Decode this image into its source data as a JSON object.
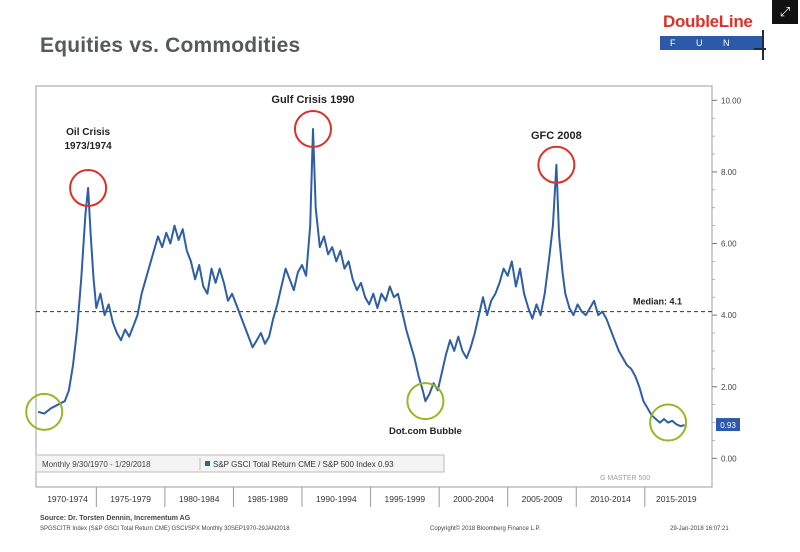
{
  "title": "Equities vs. Commodities",
  "logo": {
    "brand": "DoubleLine",
    "sub": "F U N D S"
  },
  "expand_icon": "expand-icon",
  "legend": {
    "period": "Monthly 9/30/1970 - 1/29/2018",
    "series": "S&P GSCI Total Return CME / S&P 500 Index 0.93"
  },
  "last_value_label": "0.93",
  "median_label": "Median: 4.1",
  "watermark": "G MASTER 500",
  "source_line": "Source: Dr. Torsten Dennin, Incrementum AG",
  "footer_left": "SPGSCITR Index (S&P GSCI Total Return CME) GSCI/SPX  Monthly 30SEP1970-29JAN2018",
  "footer_mid": "Copyright© 2018 Bloomberg Finance L.P.",
  "footer_right": "29-Jan-2018 16:07:21",
  "colors": {
    "line": "#2f5ea3",
    "annotation_red": "#d9322b",
    "annotation_green": "#9ab526"
  },
  "chart_data": {
    "type": "line",
    "title": "Equities vs. Commodities",
    "xlabel": "",
    "ylabel": "",
    "xlim": [
      1970.6,
      2019.9
    ],
    "ylim": [
      -0.8,
      10.4
    ],
    "y_ticks": [
      0,
      2,
      4,
      6,
      8,
      10
    ],
    "y_tick_labels": [
      "0.00",
      "2.00",
      "4.00",
      "6.00",
      "8.00",
      "10.00"
    ],
    "x_tick_labels": [
      "1970-1974",
      "1975-1979",
      "1980-1984",
      "1985-1989",
      "1990-1994",
      "1995-1999",
      "2000-2004",
      "2005-2009",
      "2010-2014",
      "2015-2019"
    ],
    "median": 4.1,
    "grid": false,
    "legend_position": "bottom-left",
    "series": [
      {
        "name": "S&P GSCI Total Return CME / S&P 500 Index",
        "last_value": 0.93,
        "points": [
          [
            1970.75,
            1.3
          ],
          [
            1971.2,
            1.25
          ],
          [
            1971.7,
            1.4
          ],
          [
            1972.2,
            1.5
          ],
          [
            1972.7,
            1.6
          ],
          [
            1973.0,
            1.9
          ],
          [
            1973.3,
            2.6
          ],
          [
            1973.6,
            3.6
          ],
          [
            1973.9,
            5.0
          ],
          [
            1974.2,
            6.8
          ],
          [
            1974.4,
            7.55
          ],
          [
            1974.6,
            6.2
          ],
          [
            1974.8,
            5.0
          ],
          [
            1975.0,
            4.2
          ],
          [
            1975.3,
            4.6
          ],
          [
            1975.6,
            4.0
          ],
          [
            1975.9,
            4.3
          ],
          [
            1976.2,
            3.8
          ],
          [
            1976.5,
            3.5
          ],
          [
            1976.8,
            3.3
          ],
          [
            1977.1,
            3.6
          ],
          [
            1977.4,
            3.4
          ],
          [
            1977.7,
            3.7
          ],
          [
            1978.0,
            4.0
          ],
          [
            1978.3,
            4.6
          ],
          [
            1978.6,
            5.0
          ],
          [
            1978.9,
            5.4
          ],
          [
            1979.2,
            5.8
          ],
          [
            1979.5,
            6.2
          ],
          [
            1979.8,
            5.9
          ],
          [
            1980.1,
            6.3
          ],
          [
            1980.4,
            6.0
          ],
          [
            1980.7,
            6.5
          ],
          [
            1981.0,
            6.1
          ],
          [
            1981.3,
            6.4
          ],
          [
            1981.6,
            5.8
          ],
          [
            1981.9,
            5.5
          ],
          [
            1982.2,
            5.0
          ],
          [
            1982.5,
            5.4
          ],
          [
            1982.8,
            4.8
          ],
          [
            1983.1,
            4.6
          ],
          [
            1983.4,
            5.3
          ],
          [
            1983.7,
            4.9
          ],
          [
            1984.0,
            5.3
          ],
          [
            1984.3,
            4.9
          ],
          [
            1984.6,
            4.4
          ],
          [
            1984.9,
            4.6
          ],
          [
            1985.2,
            4.3
          ],
          [
            1985.5,
            4.0
          ],
          [
            1985.8,
            3.7
          ],
          [
            1986.1,
            3.4
          ],
          [
            1986.4,
            3.1
          ],
          [
            1986.7,
            3.3
          ],
          [
            1987.0,
            3.5
          ],
          [
            1987.3,
            3.2
          ],
          [
            1987.6,
            3.4
          ],
          [
            1987.9,
            3.9
          ],
          [
            1988.2,
            4.3
          ],
          [
            1988.5,
            4.8
          ],
          [
            1988.8,
            5.3
          ],
          [
            1989.1,
            5.0
          ],
          [
            1989.4,
            4.7
          ],
          [
            1989.7,
            5.2
          ],
          [
            1990.0,
            5.4
          ],
          [
            1990.3,
            5.1
          ],
          [
            1990.6,
            6.5
          ],
          [
            1990.8,
            9.2
          ],
          [
            1991.0,
            7.0
          ],
          [
            1991.3,
            5.9
          ],
          [
            1991.6,
            6.2
          ],
          [
            1991.9,
            5.7
          ],
          [
            1992.2,
            5.9
          ],
          [
            1992.5,
            5.5
          ],
          [
            1992.8,
            5.8
          ],
          [
            1993.1,
            5.3
          ],
          [
            1993.4,
            5.5
          ],
          [
            1993.7,
            5.0
          ],
          [
            1994.0,
            4.7
          ],
          [
            1994.3,
            4.9
          ],
          [
            1994.6,
            4.5
          ],
          [
            1994.9,
            4.3
          ],
          [
            1995.2,
            4.6
          ],
          [
            1995.5,
            4.2
          ],
          [
            1995.8,
            4.6
          ],
          [
            1996.1,
            4.4
          ],
          [
            1996.4,
            4.8
          ],
          [
            1996.7,
            4.5
          ],
          [
            1997.0,
            4.6
          ],
          [
            1997.3,
            4.1
          ],
          [
            1997.6,
            3.6
          ],
          [
            1997.9,
            3.2
          ],
          [
            1998.2,
            2.8
          ],
          [
            1998.5,
            2.3
          ],
          [
            1998.8,
            1.9
          ],
          [
            1999.0,
            1.6
          ],
          [
            1999.3,
            1.8
          ],
          [
            1999.6,
            2.1
          ],
          [
            1999.9,
            1.9
          ],
          [
            2000.2,
            2.4
          ],
          [
            2000.5,
            2.9
          ],
          [
            2000.8,
            3.3
          ],
          [
            2001.1,
            3.0
          ],
          [
            2001.4,
            3.4
          ],
          [
            2001.7,
            3.0
          ],
          [
            2002.0,
            2.8
          ],
          [
            2002.3,
            3.1
          ],
          [
            2002.6,
            3.5
          ],
          [
            2002.9,
            4.0
          ],
          [
            2003.2,
            4.5
          ],
          [
            2003.5,
            4.0
          ],
          [
            2003.8,
            4.4
          ],
          [
            2004.1,
            4.6
          ],
          [
            2004.4,
            4.9
          ],
          [
            2004.7,
            5.3
          ],
          [
            2005.0,
            5.1
          ],
          [
            2005.3,
            5.5
          ],
          [
            2005.6,
            4.8
          ],
          [
            2005.9,
            5.3
          ],
          [
            2006.2,
            4.6
          ],
          [
            2006.5,
            4.2
          ],
          [
            2006.8,
            3.9
          ],
          [
            2007.1,
            4.3
          ],
          [
            2007.4,
            4.0
          ],
          [
            2007.7,
            4.6
          ],
          [
            2008.0,
            5.5
          ],
          [
            2008.3,
            6.5
          ],
          [
            2008.55,
            8.2
          ],
          [
            2008.75,
            6.2
          ],
          [
            2009.0,
            5.2
          ],
          [
            2009.2,
            4.6
          ],
          [
            2009.5,
            4.2
          ],
          [
            2009.8,
            4.0
          ],
          [
            2010.1,
            4.3
          ],
          [
            2010.4,
            4.1
          ],
          [
            2010.7,
            4.0
          ],
          [
            2011.0,
            4.2
          ],
          [
            2011.3,
            4.4
          ],
          [
            2011.6,
            4.0
          ],
          [
            2011.9,
            4.1
          ],
          [
            2012.2,
            3.9
          ],
          [
            2012.5,
            3.6
          ],
          [
            2012.8,
            3.3
          ],
          [
            2013.1,
            3.0
          ],
          [
            2013.4,
            2.8
          ],
          [
            2013.7,
            2.6
          ],
          [
            2014.0,
            2.5
          ],
          [
            2014.3,
            2.3
          ],
          [
            2014.6,
            2.0
          ],
          [
            2014.9,
            1.6
          ],
          [
            2015.2,
            1.4
          ],
          [
            2015.5,
            1.2
          ],
          [
            2015.8,
            1.1
          ],
          [
            2016.1,
            1.0
          ],
          [
            2016.4,
            1.1
          ],
          [
            2016.7,
            1.0
          ],
          [
            2017.0,
            1.05
          ],
          [
            2017.3,
            0.95
          ],
          [
            2017.6,
            0.9
          ],
          [
            2017.9,
            0.93
          ]
        ]
      }
    ],
    "annotations": [
      {
        "text": "Oil Crisis",
        "text2": "1973/1974",
        "x": 1974.4,
        "y": 7.55,
        "circle": "red"
      },
      {
        "text": "Gulf Crisis 1990",
        "x": 1990.8,
        "y": 9.2,
        "circle": "red"
      },
      {
        "text": "GFC 2008",
        "x": 2008.55,
        "y": 8.2,
        "circle": "red"
      },
      {
        "text": "",
        "x": 1971.2,
        "y": 1.3,
        "circle": "green"
      },
      {
        "text": "Dot.com Bubble",
        "x": 1999.0,
        "y": 1.6,
        "circle": "green"
      },
      {
        "text": "",
        "x": 2016.7,
        "y": 1.0,
        "circle": "green"
      }
    ]
  }
}
